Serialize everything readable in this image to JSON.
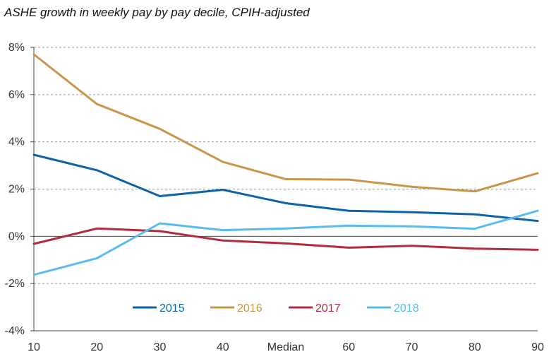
{
  "chart_data": {
    "type": "line",
    "title": "ASHE growth in weekly pay by pay decile, CPIH-adjusted",
    "categories": [
      "10",
      "20",
      "30",
      "40",
      "Median",
      "60",
      "70",
      "80",
      "90"
    ],
    "y_tick_labels": [
      "8%",
      "6%",
      "4%",
      "2%",
      "0%",
      "-2%",
      "-4%"
    ],
    "y_ticks": [
      8,
      6,
      4,
      2,
      0,
      -2,
      -4
    ],
    "ylim": [
      -4,
      8
    ],
    "grid": "horizontal dashed",
    "legend_position": "bottom-left",
    "series": [
      {
        "name": "2015",
        "color": "#0e63a8",
        "values": [
          3.45,
          2.8,
          1.7,
          1.97,
          1.4,
          1.08,
          1.02,
          0.93,
          0.65
        ]
      },
      {
        "name": "2016",
        "color": "#c8964a",
        "values": [
          7.7,
          5.6,
          4.55,
          3.15,
          2.42,
          2.4,
          2.1,
          1.9,
          2.67
        ]
      },
      {
        "name": "2017",
        "color": "#b22c3e",
        "values": [
          -0.32,
          0.33,
          0.22,
          -0.18,
          -0.3,
          -0.48,
          -0.4,
          -0.52,
          -0.57
        ]
      },
      {
        "name": "2018",
        "color": "#5bbbee",
        "values": [
          -1.63,
          -0.93,
          0.55,
          0.26,
          0.33,
          0.45,
          0.42,
          0.32,
          1.08
        ]
      }
    ]
  }
}
